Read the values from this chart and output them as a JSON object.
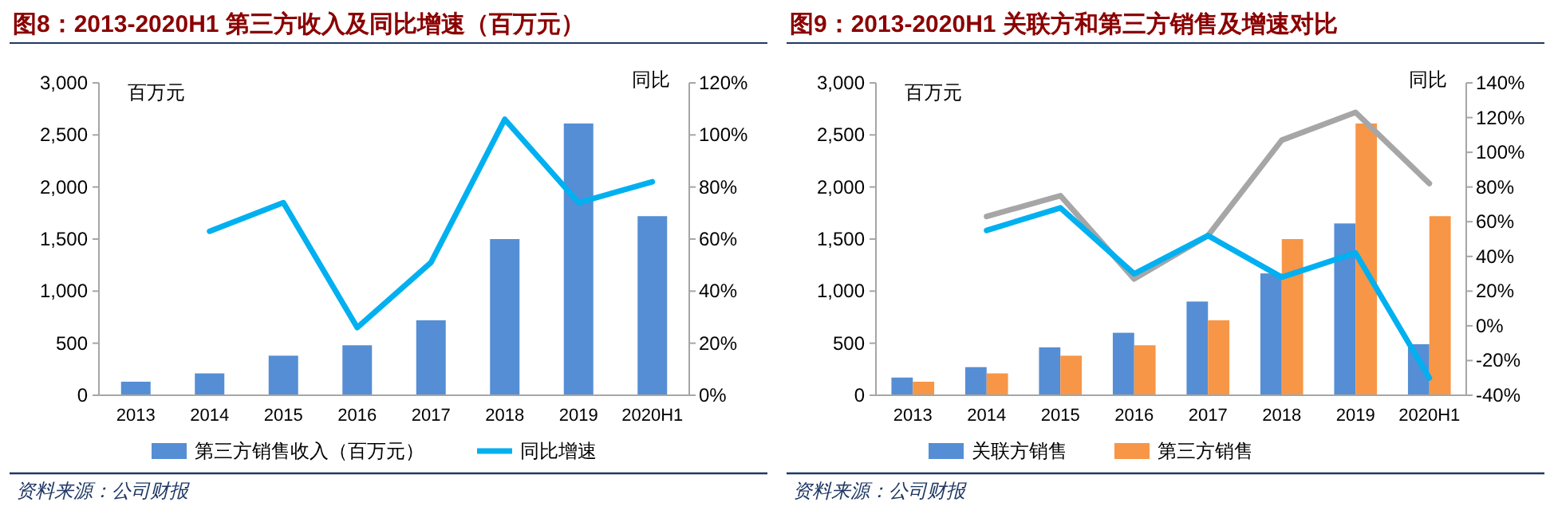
{
  "chart_data": [
    {
      "type": "bar",
      "title": "图8：2013-2020H1 第三方收入及同比增速（百万元）",
      "ylabel": "百万元",
      "y2label": "同比",
      "categories": [
        "2013",
        "2014",
        "2015",
        "2016",
        "2017",
        "2018",
        "2019",
        "2020H1"
      ],
      "series": [
        {
          "name": "第三方销售收入（百万元）",
          "color": "#558ed5",
          "values": [
            130,
            210,
            380,
            480,
            720,
            1500,
            2610,
            1720
          ]
        },
        {
          "name": "同比增速",
          "type": "line",
          "axis": "y2",
          "color": "#00b0f0",
          "values": [
            null,
            63,
            74,
            26,
            51,
            106,
            74,
            82
          ]
        }
      ],
      "ylim": [
        0,
        3000
      ],
      "yticks": [
        {
          "value": 0,
          "label": "0"
        },
        {
          "value": 500,
          "label": "500"
        },
        {
          "value": 1000,
          "label": "1,000"
        },
        {
          "value": 1500,
          "label": "1,500"
        },
        {
          "value": 2000,
          "label": "2,000"
        },
        {
          "value": 2500,
          "label": "2,500"
        },
        {
          "value": 3000,
          "label": "3,000"
        }
      ],
      "y2lim": [
        0,
        120
      ],
      "y2ticks": [
        {
          "value": 0,
          "label": "0%"
        },
        {
          "value": 20,
          "label": "20%"
        },
        {
          "value": 40,
          "label": "40%"
        },
        {
          "value": 60,
          "label": "60%"
        },
        {
          "value": 80,
          "label": "80%"
        },
        {
          "value": 100,
          "label": "100%"
        },
        {
          "value": 120,
          "label": "120%"
        }
      ],
      "legend": "bottom",
      "annotations": [
        "资料来源：公司财报"
      ]
    },
    {
      "type": "bar",
      "title": "图9：2013-2020H1 关联方和第三方销售及增速对比",
      "ylabel": "百万元",
      "y2label": "同比",
      "categories": [
        "2013",
        "2014",
        "2015",
        "2016",
        "2017",
        "2018",
        "2019",
        "2020H1"
      ],
      "series": [
        {
          "name": "关联方销售",
          "color": "#558ed5",
          "values": [
            170,
            270,
            460,
            600,
            900,
            1170,
            1650,
            490
          ]
        },
        {
          "name": "第三方销售",
          "color": "#f79646",
          "values": [
            130,
            210,
            380,
            480,
            720,
            1500,
            2610,
            1720
          ]
        },
        {
          "type": "line",
          "axis": "y2",
          "color": "#a6a6a6",
          "values": [
            null,
            63,
            75,
            27,
            52,
            107,
            123,
            82
          ]
        },
        {
          "type": "line",
          "axis": "y2",
          "color": "#00b0f0",
          "values": [
            null,
            55,
            68,
            30,
            52,
            28,
            42,
            -30
          ]
        }
      ],
      "ylim": [
        0,
        3000
      ],
      "yticks": [
        {
          "value": 0,
          "label": "0"
        },
        {
          "value": 500,
          "label": "500"
        },
        {
          "value": 1000,
          "label": "1,000"
        },
        {
          "value": 1500,
          "label": "1,500"
        },
        {
          "value": 2000,
          "label": "2,000"
        },
        {
          "value": 2500,
          "label": "2,500"
        },
        {
          "value": 3000,
          "label": "3,000"
        }
      ],
      "y2lim": [
        -40,
        140
      ],
      "y2ticks": [
        {
          "value": -40,
          "label": "-40%"
        },
        {
          "value": -20,
          "label": "-20%"
        },
        {
          "value": 0,
          "label": "0%"
        },
        {
          "value": 20,
          "label": "20%"
        },
        {
          "value": 40,
          "label": "40%"
        },
        {
          "value": 60,
          "label": "60%"
        },
        {
          "value": 80,
          "label": "80%"
        },
        {
          "value": 100,
          "label": "100%"
        },
        {
          "value": 120,
          "label": "120%"
        },
        {
          "value": 140,
          "label": "140%"
        }
      ],
      "legend": "bottom",
      "annotations": [
        "资料来源：公司财报"
      ]
    }
  ]
}
